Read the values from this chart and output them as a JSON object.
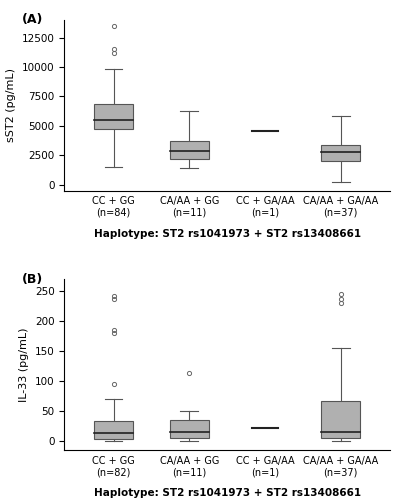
{
  "panel_A": {
    "label": "(A)",
    "ylabel": "sST2 (pg/mL)",
    "ylim": [
      -500,
      14000
    ],
    "yticks": [
      0,
      2500,
      5000,
      7500,
      10000,
      12500
    ],
    "groups": [
      {
        "label": "CC + GG\n(n=84)",
        "median": 5500,
        "q1": 4700,
        "q3": 6900,
        "whisker_low": 1500,
        "whisker_high": 9800,
        "outliers": [
          11200,
          11500,
          13500
        ]
      },
      {
        "label": "CA/AA + GG\n(n=11)",
        "median": 2900,
        "q1": 2200,
        "q3": 3700,
        "whisker_low": 1400,
        "whisker_high": 6300,
        "outliers": []
      },
      {
        "label": "CC + GA/AA\n(n=1)",
        "median": 4600,
        "q1": 4600,
        "q3": 4600,
        "whisker_low": 4600,
        "whisker_high": 4600,
        "outliers": []
      },
      {
        "label": "CA/AA + GA/AA\n(n=37)",
        "median": 2800,
        "q1": 2000,
        "q3": 3400,
        "whisker_low": 200,
        "whisker_high": 5800,
        "outliers": []
      }
    ]
  },
  "panel_B": {
    "label": "(B)",
    "ylabel": "IL-33 (pg/mL)",
    "ylim": [
      -15,
      270
    ],
    "yticks": [
      0,
      50,
      100,
      150,
      200,
      250
    ],
    "groups": [
      {
        "label": "CC + GG\n(n=82)",
        "median": 13,
        "q1": 3,
        "q3": 33,
        "whisker_low": 0,
        "whisker_high": 70,
        "outliers": [
          95,
          180,
          185,
          238,
          242
        ]
      },
      {
        "label": "CA/AA + GG\n(n=11)",
        "median": 15,
        "q1": 5,
        "q3": 35,
        "whisker_low": 0,
        "whisker_high": 50,
        "outliers": [
          113
        ]
      },
      {
        "label": "CC + GA/AA\n(n=1)",
        "median": 22,
        "q1": 22,
        "q3": 22,
        "whisker_low": 22,
        "whisker_high": 22,
        "outliers": []
      },
      {
        "label": "CA/AA + GA/AA\n(n=37)",
        "median": 15,
        "q1": 5,
        "q3": 67,
        "whisker_low": 0,
        "whisker_high": 155,
        "outliers": [
          230,
          237,
          245
        ]
      }
    ]
  },
  "box_color": "#b0b0b0",
  "box_edge_color": "#555555",
  "whisker_color": "#555555",
  "median_color": "#222222",
  "outlier_color": "#666666",
  "background_color": "#ffffff",
  "xlabel_text": "Haplotype: ST2 rs1041973 + ST2 rs13408661"
}
